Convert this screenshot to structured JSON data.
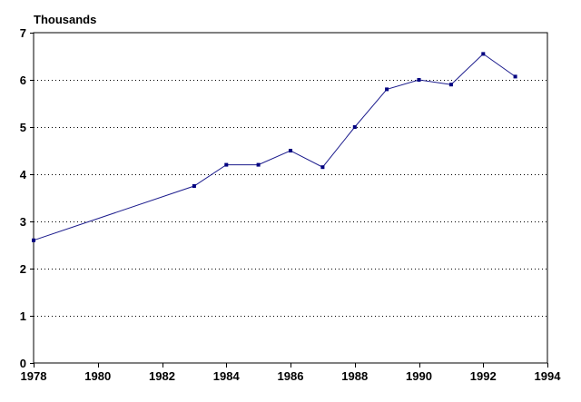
{
  "chart_data": {
    "type": "line",
    "title": "",
    "ylabel": "Thousands",
    "xlabel": "",
    "x": [
      1978,
      1983,
      1984,
      1985,
      1986,
      1987,
      1988,
      1989,
      1990,
      1991,
      1992,
      1993
    ],
    "series": [
      {
        "values": [
          2.6,
          3.75,
          4.2,
          4.2,
          4.5,
          4.15,
          5.0,
          5.8,
          6.0,
          5.9,
          6.55,
          6.07
        ]
      }
    ],
    "xlim": [
      1978,
      1994
    ],
    "ylim": [
      0,
      7
    ],
    "x_ticks": [
      "1978",
      "1980",
      "1982",
      "1984",
      "1986",
      "1988",
      "1990",
      "1992",
      "1994"
    ],
    "y_ticks": [
      "0",
      "1",
      "2",
      "3",
      "4",
      "5",
      "6",
      "7"
    ],
    "grid": "horizontal dotted",
    "line_color": "#1a1a8c",
    "marker_color": "#000080"
  }
}
